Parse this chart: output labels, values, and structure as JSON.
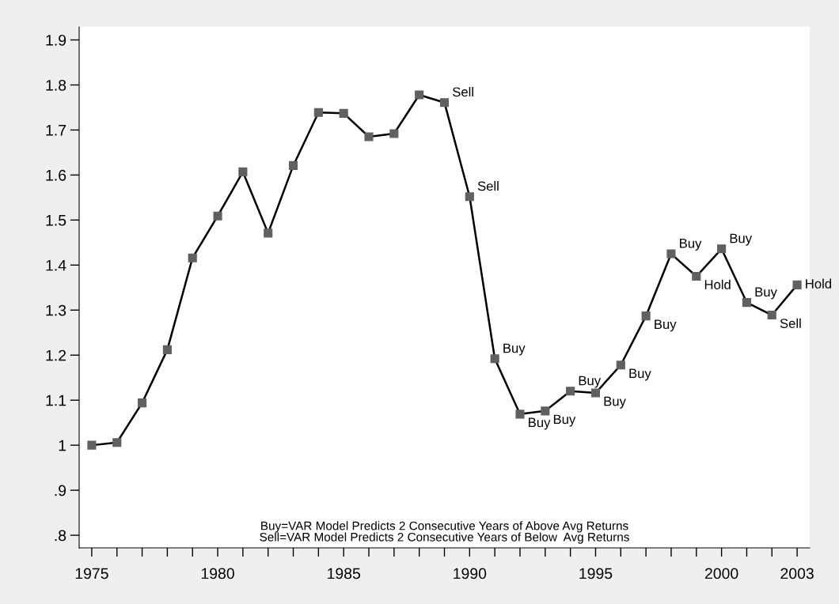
{
  "chart_data": {
    "type": "line",
    "x": [
      1975,
      1976,
      1977,
      1978,
      1979,
      1980,
      1981,
      1982,
      1983,
      1984,
      1985,
      1986,
      1987,
      1988,
      1989,
      1990,
      1991,
      1992,
      1993,
      1994,
      1995,
      1996,
      1997,
      1998,
      1999,
      2000,
      2001,
      2002,
      2003
    ],
    "series": [
      {
        "color": "#606060",
        "values": [
          1.0,
          1.006,
          1.094,
          1.212,
          1.416,
          1.509,
          1.607,
          1.471,
          1.621,
          1.739,
          1.737,
          1.685,
          1.692,
          1.778,
          1.761,
          1.552,
          1.192,
          1.069,
          1.076,
          1.12,
          1.116,
          1.178,
          1.287,
          1.425,
          1.375,
          1.436,
          1.317,
          1.289,
          1.356
        ]
      }
    ],
    "marker": "square",
    "line_style": "solid",
    "grid": false,
    "legend": false,
    "xlim": [
      1974.5,
      2003.5
    ],
    "xticks": [
      {
        "value": 1975,
        "label": "1975"
      },
      {
        "value": 1976,
        "label": null
      },
      {
        "value": 1977,
        "label": null
      },
      {
        "value": 1978,
        "label": null
      },
      {
        "value": 1979,
        "label": null
      },
      {
        "value": 1980,
        "label": "1980"
      },
      {
        "value": 1981,
        "label": null
      },
      {
        "value": 1982,
        "label": null
      },
      {
        "value": 1983,
        "label": null
      },
      {
        "value": 1984,
        "label": null
      },
      {
        "value": 1985,
        "label": "1985"
      },
      {
        "value": 1986,
        "label": null
      },
      {
        "value": 1987,
        "label": null
      },
      {
        "value": 1988,
        "label": null
      },
      {
        "value": 1989,
        "label": null
      },
      {
        "value": 1990,
        "label": "1990"
      },
      {
        "value": 1991,
        "label": null
      },
      {
        "value": 1992,
        "label": null
      },
      {
        "value": 1993,
        "label": null
      },
      {
        "value": 1994,
        "label": null
      },
      {
        "value": 1995,
        "label": "1995"
      },
      {
        "value": 1996,
        "label": null
      },
      {
        "value": 1997,
        "label": null
      },
      {
        "value": 1998,
        "label": null
      },
      {
        "value": 1999,
        "label": null
      },
      {
        "value": 2000,
        "label": "2000"
      },
      {
        "value": 2001,
        "label": null
      },
      {
        "value": 2002,
        "label": null
      },
      {
        "value": 2003,
        "label": "2003"
      }
    ],
    "ylim": [
      0.772,
      1.929
    ],
    "yticks": [
      {
        "value": 0.8,
        "label": ".8"
      },
      {
        "value": 0.9,
        "label": ".9"
      },
      1,
      1.1,
      1.2,
      1.3,
      1.4,
      1.5,
      1.6,
      1.7,
      1.8,
      1.9
    ],
    "annotations": [
      {
        "text": "Sell",
        "x": 1989,
        "y": 1.761
      },
      {
        "text": "Sell",
        "x": 1990,
        "y": 1.552
      },
      {
        "text": "Buy",
        "x": 1991,
        "y": 1.192
      },
      {
        "text": "Buy",
        "x": 1992,
        "y": 1.069
      },
      {
        "text": "Buy",
        "x": 1993,
        "y": 1.076
      },
      {
        "text": "Buy",
        "x": 1994,
        "y": 1.12
      },
      {
        "text": "Buy",
        "x": 1995,
        "y": 1.116
      },
      {
        "text": "Buy",
        "x": 1996,
        "y": 1.178
      },
      {
        "text": "Buy",
        "x": 1997,
        "y": 1.287
      },
      {
        "text": "Buy",
        "x": 1998,
        "y": 1.425
      },
      {
        "text": "Hold",
        "x": 1999,
        "y": 1.375
      },
      {
        "text": "Buy",
        "x": 2000,
        "y": 1.436
      },
      {
        "text": "Buy",
        "x": 2001,
        "y": 1.317
      },
      {
        "text": "Sell",
        "x": 2002,
        "y": 1.289
      },
      {
        "text": "Hold",
        "x": 2003,
        "y": 1.356
      },
      "Buy=VAR Model Predicts 2 Consecutive Years of Above Avg Returns\nSell=VAR Model Predicts 2 Consecutive Years of Below  Avg Returns"
    ]
  }
}
